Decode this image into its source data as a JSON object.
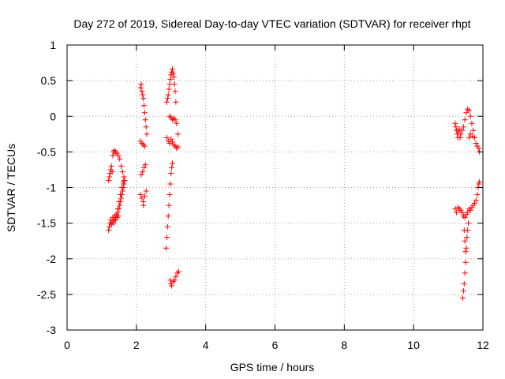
{
  "chart_data": {
    "type": "scatter",
    "title": "Day 272 of 2019, Sidereal Day-to-day VTEC variation (SDTVAR) for receiver rhpt",
    "xlabel": "GPS time / hours",
    "ylabel": "SDTVAR / TECUs",
    "xlim": [
      0,
      12
    ],
    "ylim": [
      -3,
      1
    ],
    "xticks": [
      0,
      2,
      4,
      6,
      8,
      10,
      12
    ],
    "yticks": [
      -3,
      -2.5,
      -2,
      -1.5,
      -1,
      -0.5,
      0,
      0.5,
      1
    ],
    "xtick_labels": [
      "0",
      "2",
      "4",
      "6",
      "8",
      "10",
      "12"
    ],
    "ytick_labels": [
      "-3",
      "-2.5",
      "-2",
      "-1.5",
      "-1",
      "-0.5",
      "0",
      "0.5",
      "1"
    ],
    "grid": true,
    "marker": "+",
    "color": "#ff0000",
    "series": [
      {
        "name": "SDTVAR",
        "points": [
          [
            1.2,
            -1.6
          ],
          [
            1.22,
            -1.55
          ],
          [
            1.24,
            -1.5
          ],
          [
            1.26,
            -1.45
          ],
          [
            1.28,
            -1.52
          ],
          [
            1.3,
            -1.48
          ],
          [
            1.32,
            -1.42
          ],
          [
            1.34,
            -1.5
          ],
          [
            1.36,
            -1.46
          ],
          [
            1.38,
            -1.4
          ],
          [
            1.4,
            -1.45
          ],
          [
            1.42,
            -1.38
          ],
          [
            1.44,
            -1.42
          ],
          [
            1.46,
            -1.35
          ],
          [
            1.48,
            -1.4
          ],
          [
            1.5,
            -1.3
          ],
          [
            1.52,
            -1.25
          ],
          [
            1.54,
            -1.2
          ],
          [
            1.56,
            -1.15
          ],
          [
            1.58,
            -1.1
          ],
          [
            1.6,
            -1.05
          ],
          [
            1.62,
            -1.0
          ],
          [
            1.64,
            -0.95
          ],
          [
            1.66,
            -0.9
          ],
          [
            1.2,
            -0.9
          ],
          [
            1.22,
            -0.85
          ],
          [
            1.24,
            -0.8
          ],
          [
            1.26,
            -0.75
          ],
          [
            1.28,
            -0.7
          ],
          [
            1.3,
            -0.78
          ],
          [
            1.32,
            -0.55
          ],
          [
            1.34,
            -0.5
          ],
          [
            1.36,
            -0.48
          ],
          [
            1.4,
            -0.5
          ],
          [
            1.44,
            -0.52
          ],
          [
            1.48,
            -0.55
          ],
          [
            1.52,
            -0.6
          ],
          [
            1.56,
            -0.7
          ],
          [
            1.6,
            -0.78
          ],
          [
            1.64,
            -0.85
          ],
          [
            1.46,
            -1.3
          ],
          [
            1.5,
            -1.2
          ],
          [
            1.54,
            -1.1
          ],
          [
            1.58,
            -1.0
          ],
          [
            1.62,
            -0.92
          ],
          [
            2.12,
            0.4
          ],
          [
            2.14,
            0.45
          ],
          [
            2.16,
            0.35
          ],
          [
            2.18,
            0.3
          ],
          [
            2.2,
            0.25
          ],
          [
            2.22,
            0.15
          ],
          [
            2.24,
            0.05
          ],
          [
            2.26,
            -0.05
          ],
          [
            2.28,
            -0.15
          ],
          [
            2.3,
            -0.25
          ],
          [
            2.12,
            -0.35
          ],
          [
            2.16,
            -0.38
          ],
          [
            2.2,
            -0.4
          ],
          [
            2.24,
            -0.42
          ],
          [
            2.14,
            -0.82
          ],
          [
            2.18,
            -0.78
          ],
          [
            2.22,
            -0.72
          ],
          [
            2.26,
            -0.68
          ],
          [
            2.12,
            -1.1
          ],
          [
            2.16,
            -1.15
          ],
          [
            2.2,
            -1.2
          ],
          [
            2.24,
            -1.12
          ],
          [
            2.28,
            -1.05
          ],
          [
            2.2,
            -1.25
          ],
          [
            2.86,
            -1.85
          ],
          [
            2.88,
            -1.7
          ],
          [
            2.9,
            -1.55
          ],
          [
            2.92,
            -1.4
          ],
          [
            2.94,
            -1.25
          ],
          [
            2.96,
            -1.1
          ],
          [
            2.98,
            -0.95
          ],
          [
            3.0,
            -0.8
          ],
          [
            3.02,
            -0.72
          ],
          [
            3.04,
            -0.66
          ],
          [
            2.88,
            -0.3
          ],
          [
            2.92,
            -0.35
          ],
          [
            2.96,
            -0.38
          ],
          [
            3.0,
            -0.32
          ],
          [
            3.04,
            -0.36
          ],
          [
            3.08,
            -0.4
          ],
          [
            3.12,
            -0.42
          ],
          [
            3.16,
            -0.45
          ],
          [
            3.2,
            -0.43
          ],
          [
            2.88,
            0.2
          ],
          [
            2.9,
            0.25
          ],
          [
            2.92,
            0.3
          ],
          [
            2.94,
            0.38
          ],
          [
            2.96,
            0.45
          ],
          [
            2.98,
            0.52
          ],
          [
            3.0,
            0.58
          ],
          [
            3.02,
            0.62
          ],
          [
            3.04,
            0.66
          ],
          [
            3.06,
            0.6
          ],
          [
            3.08,
            0.55
          ],
          [
            3.1,
            0.45
          ],
          [
            3.12,
            0.35
          ],
          [
            3.14,
            0.2
          ],
          [
            2.96,
            0.0
          ],
          [
            3.0,
            -0.02
          ],
          [
            3.04,
            -0.05
          ],
          [
            3.08,
            -0.03
          ],
          [
            3.12,
            -0.05
          ],
          [
            3.16,
            -0.1
          ],
          [
            3.2,
            -0.25
          ],
          [
            2.98,
            -2.3
          ],
          [
            3.0,
            -2.35
          ],
          [
            3.02,
            -2.38
          ],
          [
            3.06,
            -2.32
          ],
          [
            3.1,
            -2.3
          ],
          [
            3.14,
            -2.25
          ],
          [
            3.18,
            -2.2
          ],
          [
            3.22,
            -2.18
          ],
          [
            11.2,
            -0.1
          ],
          [
            11.22,
            -0.15
          ],
          [
            11.24,
            -0.2
          ],
          [
            11.26,
            -0.25
          ],
          [
            11.28,
            -0.3
          ],
          [
            11.3,
            -0.22
          ],
          [
            11.32,
            -0.18
          ],
          [
            11.34,
            -0.3
          ],
          [
            11.36,
            -0.25
          ],
          [
            11.4,
            -0.2
          ],
          [
            11.44,
            -0.15
          ],
          [
            11.48,
            -0.05
          ],
          [
            11.52,
            0.05
          ],
          [
            11.56,
            0.1
          ],
          [
            11.6,
            0.08
          ],
          [
            11.64,
            0.0
          ],
          [
            11.68,
            -0.1
          ],
          [
            11.72,
            -0.2
          ],
          [
            11.76,
            -0.3
          ],
          [
            11.8,
            -0.38
          ],
          [
            11.84,
            -0.42
          ],
          [
            11.88,
            -0.45
          ],
          [
            11.9,
            -0.5
          ],
          [
            11.6,
            -0.3
          ],
          [
            11.64,
            -0.25
          ],
          [
            11.7,
            -0.28
          ],
          [
            11.2,
            -1.3
          ],
          [
            11.24,
            -1.35
          ],
          [
            11.28,
            -1.28
          ],
          [
            11.32,
            -1.3
          ],
          [
            11.36,
            -1.32
          ],
          [
            11.4,
            -1.35
          ],
          [
            11.44,
            -1.4
          ],
          [
            11.48,
            -1.42
          ],
          [
            11.52,
            -1.38
          ],
          [
            11.56,
            -1.35
          ],
          [
            11.6,
            -1.3
          ],
          [
            11.64,
            -1.32
          ],
          [
            11.68,
            -1.28
          ],
          [
            11.72,
            -1.25
          ],
          [
            11.76,
            -1.22
          ],
          [
            11.8,
            -1.18
          ],
          [
            11.84,
            -1.1
          ],
          [
            11.86,
            -1.0
          ],
          [
            11.88,
            -0.95
          ],
          [
            11.9,
            -0.92
          ],
          [
            11.46,
            -1.6
          ],
          [
            11.48,
            -1.75
          ],
          [
            11.5,
            -1.9
          ],
          [
            11.5,
            -2.05
          ],
          [
            11.48,
            -2.2
          ],
          [
            11.46,
            -2.35
          ],
          [
            11.44,
            -2.45
          ],
          [
            11.42,
            -2.55
          ],
          [
            11.52,
            -1.85
          ],
          [
            11.54,
            -1.7
          ],
          [
            11.56,
            -1.6
          ],
          [
            11.58,
            -1.5
          ]
        ]
      }
    ]
  }
}
